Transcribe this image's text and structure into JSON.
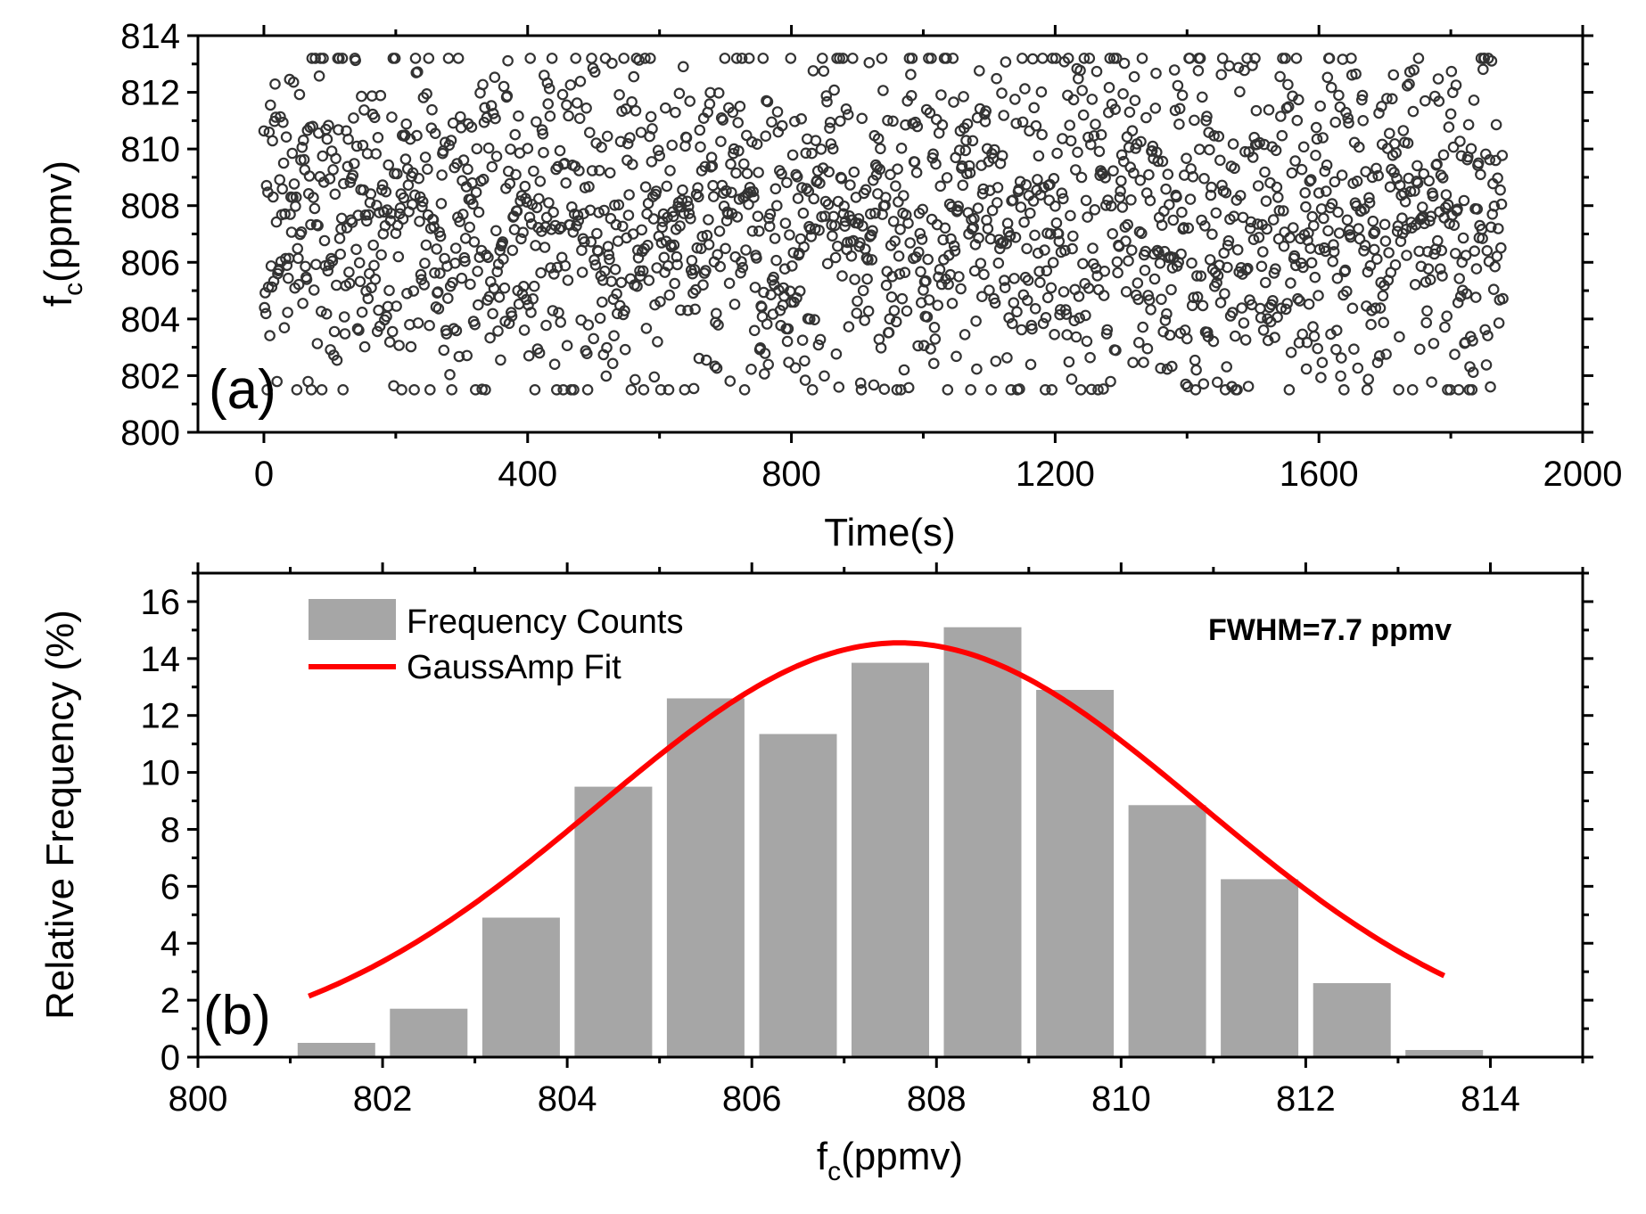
{
  "chart_data": [
    {
      "id": "a",
      "type": "scatter",
      "panel_label": "(a)",
      "xlabel": "Time(s)",
      "ylabel_main": "f",
      "ylabel_sub": "c",
      "ylabel_unit": "(ppmv)",
      "xlim": [
        -100,
        2000
      ],
      "ylim": [
        800,
        814
      ],
      "x_ticks": [
        0,
        400,
        800,
        1200,
        1600,
        2000
      ],
      "y_ticks": [
        800,
        802,
        804,
        806,
        808,
        810,
        812,
        814
      ],
      "n_points": 1880,
      "sample_interval_s": 1,
      "approx_mean": 807.6,
      "approx_range": [
        801.5,
        813.2
      ],
      "marker": "open-circle",
      "marker_color": "#333333"
    },
    {
      "id": "b",
      "type": "bar",
      "panel_label": "(b)",
      "xlabel_main": "f",
      "xlabel_sub": "c",
      "xlabel_unit": "(ppmv)",
      "ylabel": "Relative Frequency (%)",
      "xlim": [
        800,
        815
      ],
      "ylim": [
        0,
        17
      ],
      "x_ticks": [
        800,
        802,
        804,
        806,
        808,
        810,
        812,
        814
      ],
      "y_ticks": [
        0,
        2,
        4,
        6,
        8,
        10,
        12,
        14,
        16
      ],
      "bin_width": 1,
      "bin_centers": [
        800.5,
        801.5,
        802.5,
        803.5,
        804.5,
        805.5,
        806.5,
        807.5,
        808.5,
        809.5,
        810.5,
        811.5,
        812.5,
        813.5
      ],
      "values": [
        0.05,
        0.5,
        1.7,
        4.9,
        9.5,
        12.6,
        11.35,
        13.85,
        15.1,
        12.9,
        8.85,
        6.25,
        2.6,
        0.25
      ],
      "bar_color": "#a6a6a6",
      "fit": {
        "name": "GaussAmp Fit",
        "type": "gaussian",
        "center": 807.6,
        "amplitude": 14.55,
        "fwhm": 7.7,
        "x_range": [
          801.2,
          813.5
        ],
        "color": "#ff0000"
      },
      "legend": [
        {
          "label": "Frequency Counts",
          "kind": "bar"
        },
        {
          "label": "GaussAmp Fit",
          "kind": "line"
        }
      ],
      "annotation": "FWHM=7.7 ppmv"
    }
  ]
}
